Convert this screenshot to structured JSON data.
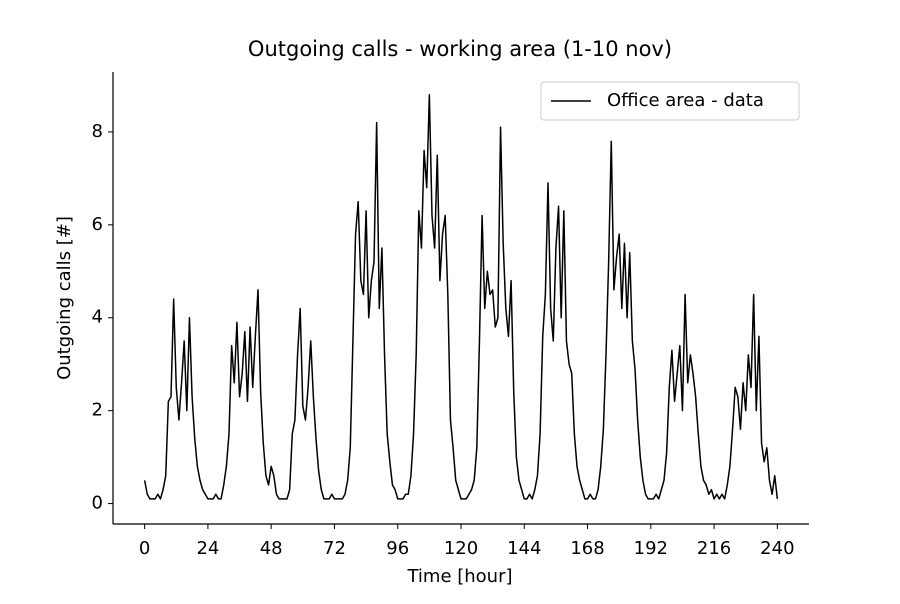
{
  "chart_data": {
    "type": "line",
    "title": "Outgoing calls - working area (1-10 nov)",
    "xlabel": "Time [hour]",
    "ylabel": "Outgoing calls [#]",
    "x": [
      0,
      1,
      2,
      3,
      4,
      5,
      6,
      7,
      8,
      9,
      10,
      11,
      12,
      13,
      14,
      15,
      16,
      17,
      18,
      19,
      20,
      21,
      22,
      23,
      24,
      25,
      26,
      27,
      28,
      29,
      30,
      31,
      32,
      33,
      34,
      35,
      36,
      37,
      38,
      39,
      40,
      41,
      42,
      43,
      44,
      45,
      46,
      47,
      48,
      49,
      50,
      51,
      52,
      53,
      54,
      55,
      56,
      57,
      58,
      59,
      60,
      61,
      62,
      63,
      64,
      65,
      66,
      67,
      68,
      69,
      70,
      71,
      72,
      73,
      74,
      75,
      76,
      77,
      78,
      79,
      80,
      81,
      82,
      83,
      84,
      85,
      86,
      87,
      88,
      89,
      90,
      91,
      92,
      93,
      94,
      95,
      96,
      97,
      98,
      99,
      100,
      101,
      102,
      103,
      104,
      105,
      106,
      107,
      108,
      109,
      110,
      111,
      112,
      113,
      114,
      115,
      116,
      117,
      118,
      119,
      120,
      121,
      122,
      123,
      124,
      125,
      126,
      127,
      128,
      129,
      130,
      131,
      132,
      133,
      134,
      135,
      136,
      137,
      138,
      139,
      140,
      141,
      142,
      143,
      144,
      145,
      146,
      147,
      148,
      149,
      150,
      151,
      152,
      153,
      154,
      155,
      156,
      157,
      158,
      159,
      160,
      161,
      162,
      163,
      164,
      165,
      166,
      167,
      168,
      169,
      170,
      171,
      172,
      173,
      174,
      175,
      176,
      177,
      178,
      179,
      180,
      181,
      182,
      183,
      184,
      185,
      186,
      187,
      188,
      189,
      190,
      191,
      192,
      193,
      194,
      195,
      196,
      197,
      198,
      199,
      200,
      201,
      202,
      203,
      204,
      205,
      206,
      207,
      208,
      209,
      210,
      211,
      212,
      213,
      214,
      215,
      216,
      217,
      218,
      219,
      220,
      221,
      222,
      223,
      224,
      225,
      226,
      227,
      228,
      229,
      230,
      231,
      232,
      233,
      234,
      235,
      236,
      237,
      238,
      239,
      240
    ],
    "series": [
      {
        "name": "Office area - data",
        "color": "#000000",
        "values": [
          0.5,
          0.2,
          0.1,
          0.1,
          0.1,
          0.2,
          0.1,
          0.3,
          0.6,
          2.2,
          2.3,
          4.4,
          2.5,
          1.8,
          2.6,
          3.5,
          2.0,
          4.0,
          2.3,
          1.4,
          0.8,
          0.5,
          0.3,
          0.2,
          0.1,
          0.1,
          0.1,
          0.2,
          0.1,
          0.1,
          0.4,
          0.8,
          1.5,
          3.4,
          2.6,
          3.9,
          2.3,
          2.8,
          3.7,
          2.2,
          3.8,
          2.5,
          3.6,
          4.6,
          2.4,
          1.3,
          0.6,
          0.4,
          0.8,
          0.6,
          0.2,
          0.1,
          0.1,
          0.1,
          0.1,
          0.3,
          1.5,
          1.8,
          3.2,
          4.2,
          2.1,
          1.8,
          2.5,
          3.5,
          2.3,
          1.4,
          0.7,
          0.3,
          0.1,
          0.1,
          0.1,
          0.2,
          0.1,
          0.1,
          0.1,
          0.1,
          0.2,
          0.5,
          1.2,
          3.5,
          5.8,
          6.5,
          4.8,
          4.5,
          6.3,
          4.0,
          4.8,
          5.2,
          8.2,
          4.2,
          5.5,
          3.2,
          1.5,
          0.9,
          0.4,
          0.3,
          0.1,
          0.1,
          0.1,
          0.2,
          0.2,
          0.6,
          1.5,
          3.2,
          6.3,
          5.5,
          7.6,
          6.8,
          8.8,
          6.2,
          5.5,
          7.5,
          4.8,
          5.8,
          6.2,
          4.5,
          1.8,
          1.2,
          0.5,
          0.3,
          0.1,
          0.1,
          0.1,
          0.2,
          0.3,
          0.5,
          1.2,
          3.5,
          6.2,
          4.2,
          5.0,
          4.5,
          4.6,
          3.8,
          4.0,
          8.1,
          5.6,
          4.2,
          3.6,
          4.8,
          2.4,
          1.0,
          0.5,
          0.3,
          0.1,
          0.1,
          0.2,
          0.1,
          0.3,
          0.6,
          1.5,
          3.6,
          4.5,
          6.9,
          4.2,
          3.5,
          5.5,
          6.4,
          4.0,
          6.3,
          3.5,
          3.0,
          2.8,
          1.5,
          0.8,
          0.5,
          0.3,
          0.1,
          0.1,
          0.2,
          0.1,
          0.1,
          0.3,
          0.8,
          1.6,
          3.2,
          5.2,
          7.8,
          4.6,
          5.3,
          5.8,
          4.2,
          5.6,
          4.0,
          5.4,
          3.5,
          2.9,
          1.8,
          1.0,
          0.5,
          0.2,
          0.1,
          0.1,
          0.1,
          0.2,
          0.1,
          0.3,
          0.5,
          1.1,
          2.5,
          3.3,
          2.2,
          2.8,
          3.4,
          2.0,
          4.5,
          2.6,
          3.2,
          2.8,
          2.3,
          1.5,
          0.8,
          0.5,
          0.4,
          0.2,
          0.3,
          0.1,
          0.2,
          0.1,
          0.2,
          0.1,
          0.4,
          0.8,
          1.6,
          2.5,
          2.3,
          1.6,
          2.6,
          2.0,
          3.2,
          2.5,
          4.5,
          2.0,
          3.6,
          1.3,
          0.9,
          1.2,
          0.5,
          0.2,
          0.6,
          0.1
        ]
      }
    ],
    "xlim": [
      -12,
      252
    ],
    "ylim": [
      -0.44,
      9.29
    ],
    "xticks": [
      0,
      24,
      48,
      72,
      96,
      120,
      144,
      168,
      192,
      216,
      240
    ],
    "yticks": [
      0,
      2,
      4,
      6,
      8
    ],
    "legend": "upper right",
    "grid": false
  }
}
